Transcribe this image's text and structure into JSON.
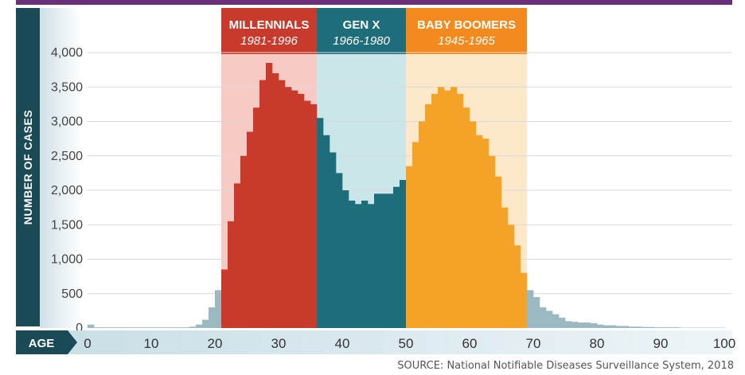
{
  "chart_data": {
    "type": "bar",
    "ylabel": "NUMBER OF CASES",
    "xlabel": "AGE",
    "xlim": [
      0,
      100
    ],
    "ylim": [
      0,
      4000
    ],
    "x_ticks": [
      0,
      10,
      20,
      30,
      40,
      50,
      60,
      70,
      80,
      90,
      100
    ],
    "y_ticks": [
      "0",
      "500",
      "1,000",
      "1,500",
      "2,000",
      "2,500",
      "3,000",
      "3,500",
      "4,000"
    ],
    "y_tick_values": [
      0,
      500,
      1000,
      1500,
      2000,
      2500,
      3000,
      3500,
      4000
    ],
    "generations": [
      {
        "name": "MILLENNIALS",
        "years": "1981-1996",
        "age_range": [
          21,
          36
        ],
        "color": "#c83a2c"
      },
      {
        "name": "GEN X",
        "years": "1966-1980",
        "age_range": [
          36,
          50
        ],
        "color": "#1e6d7a"
      },
      {
        "name": "BABY BOOMERS",
        "years": "1945-1965",
        "age_range": [
          50,
          69
        ],
        "color": "#f5a229"
      }
    ],
    "ages": [
      0,
      1,
      2,
      3,
      4,
      5,
      6,
      7,
      8,
      9,
      10,
      11,
      12,
      13,
      14,
      15,
      16,
      17,
      18,
      19,
      20,
      21,
      22,
      23,
      24,
      25,
      26,
      27,
      28,
      29,
      30,
      31,
      32,
      33,
      34,
      35,
      36,
      37,
      38,
      39,
      40,
      41,
      42,
      43,
      44,
      45,
      46,
      47,
      48,
      49,
      50,
      51,
      52,
      53,
      54,
      55,
      56,
      57,
      58,
      59,
      60,
      61,
      62,
      63,
      64,
      65,
      66,
      67,
      68,
      69,
      70,
      71,
      72,
      73,
      74,
      75,
      76,
      77,
      78,
      79,
      80,
      81,
      82,
      83,
      84,
      85,
      86,
      87,
      88,
      89,
      90,
      91,
      92,
      93,
      94,
      95,
      96,
      97,
      98,
      99
    ],
    "values": [
      50,
      10,
      10,
      10,
      10,
      10,
      10,
      10,
      10,
      10,
      10,
      10,
      10,
      10,
      10,
      10,
      20,
      50,
      120,
      300,
      550,
      850,
      1550,
      2100,
      2500,
      2850,
      3200,
      3600,
      3850,
      3700,
      3600,
      3500,
      3450,
      3400,
      3300,
      3250,
      3050,
      2800,
      2550,
      2250,
      2000,
      1850,
      1800,
      1850,
      1800,
      1950,
      1950,
      1950,
      2050,
      2150,
      2350,
      2700,
      3000,
      3250,
      3400,
      3500,
      3450,
      3500,
      3400,
      3200,
      3000,
      2800,
      2750,
      2500,
      2200,
      1750,
      1500,
      1200,
      800,
      550,
      450,
      300,
      250,
      200,
      150,
      100,
      90,
      80,
      80,
      70,
      50,
      40,
      40,
      30,
      30,
      20,
      20,
      15,
      15,
      10,
      10,
      10,
      10,
      5,
      5,
      5,
      5,
      5,
      5,
      5
    ]
  },
  "source": "SOURCE: National Notifiable Diseases Surveillance System, 2018"
}
